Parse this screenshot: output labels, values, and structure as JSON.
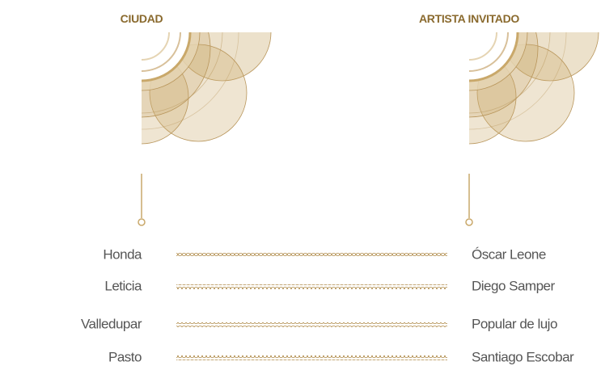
{
  "header": {
    "city_title": "CIUDAD",
    "artist_title": "ARTISTA INVITADO"
  },
  "rows": [
    {
      "city": "Honda",
      "artist": "Óscar Leone"
    },
    {
      "city": "Leticia",
      "artist": "Diego Samper"
    },
    {
      "city": "Valledupar",
      "artist": "Popular de lujo"
    },
    {
      "city": "Pasto",
      "artist": "Santiago Escobar"
    }
  ]
}
